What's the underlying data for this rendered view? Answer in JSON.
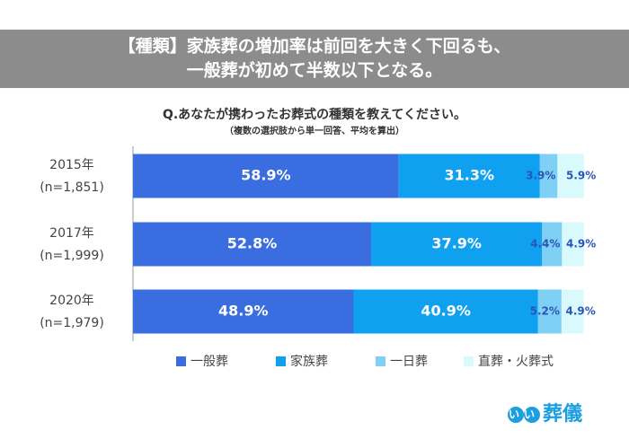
{
  "chart_data": {
    "type": "stacked-bar-horizontal",
    "title": [
      "【種類】家族葬の増加率は前回を大きく下回るも、",
      "一般葬が初めて半数以下となる。"
    ],
    "subtitle": "Q.あなたが携わったお葬式の種類を教えてください。",
    "note": "（複数の選択肢から単一回答、平均を算出）",
    "categories": [
      "2015年",
      "2017年",
      "2020年"
    ],
    "category_notes": [
      "(n=1,851)",
      "(n=1,999)",
      "(n=1,979)"
    ],
    "xlim": [
      0,
      100
    ],
    "series": [
      {
        "name": "一般葬",
        "color": "#3a6ee0",
        "values": [
          58.9,
          52.8,
          48.9
        ],
        "value_labels": [
          "58.9%",
          "52.8%",
          "48.9%"
        ]
      },
      {
        "name": "家族葬",
        "color": "#0fa0f0",
        "values": [
          31.3,
          37.9,
          40.9
        ],
        "value_labels": [
          "31.3%",
          "37.9%",
          "40.9%"
        ]
      },
      {
        "name": "一日葬",
        "color": "#7fd0f5",
        "values": [
          3.9,
          4.4,
          5.2
        ],
        "value_labels": [
          "3.9%",
          "4.4%",
          "5.2%"
        ]
      },
      {
        "name": "直葬・火葬式",
        "color": "#d8fafd",
        "values": [
          5.9,
          4.9,
          4.9
        ],
        "value_labels": [
          "5.9%",
          "4.9%",
          "4.9%"
        ]
      }
    ]
  },
  "logo": {
    "mark": "いい",
    "name": "葬儀"
  }
}
